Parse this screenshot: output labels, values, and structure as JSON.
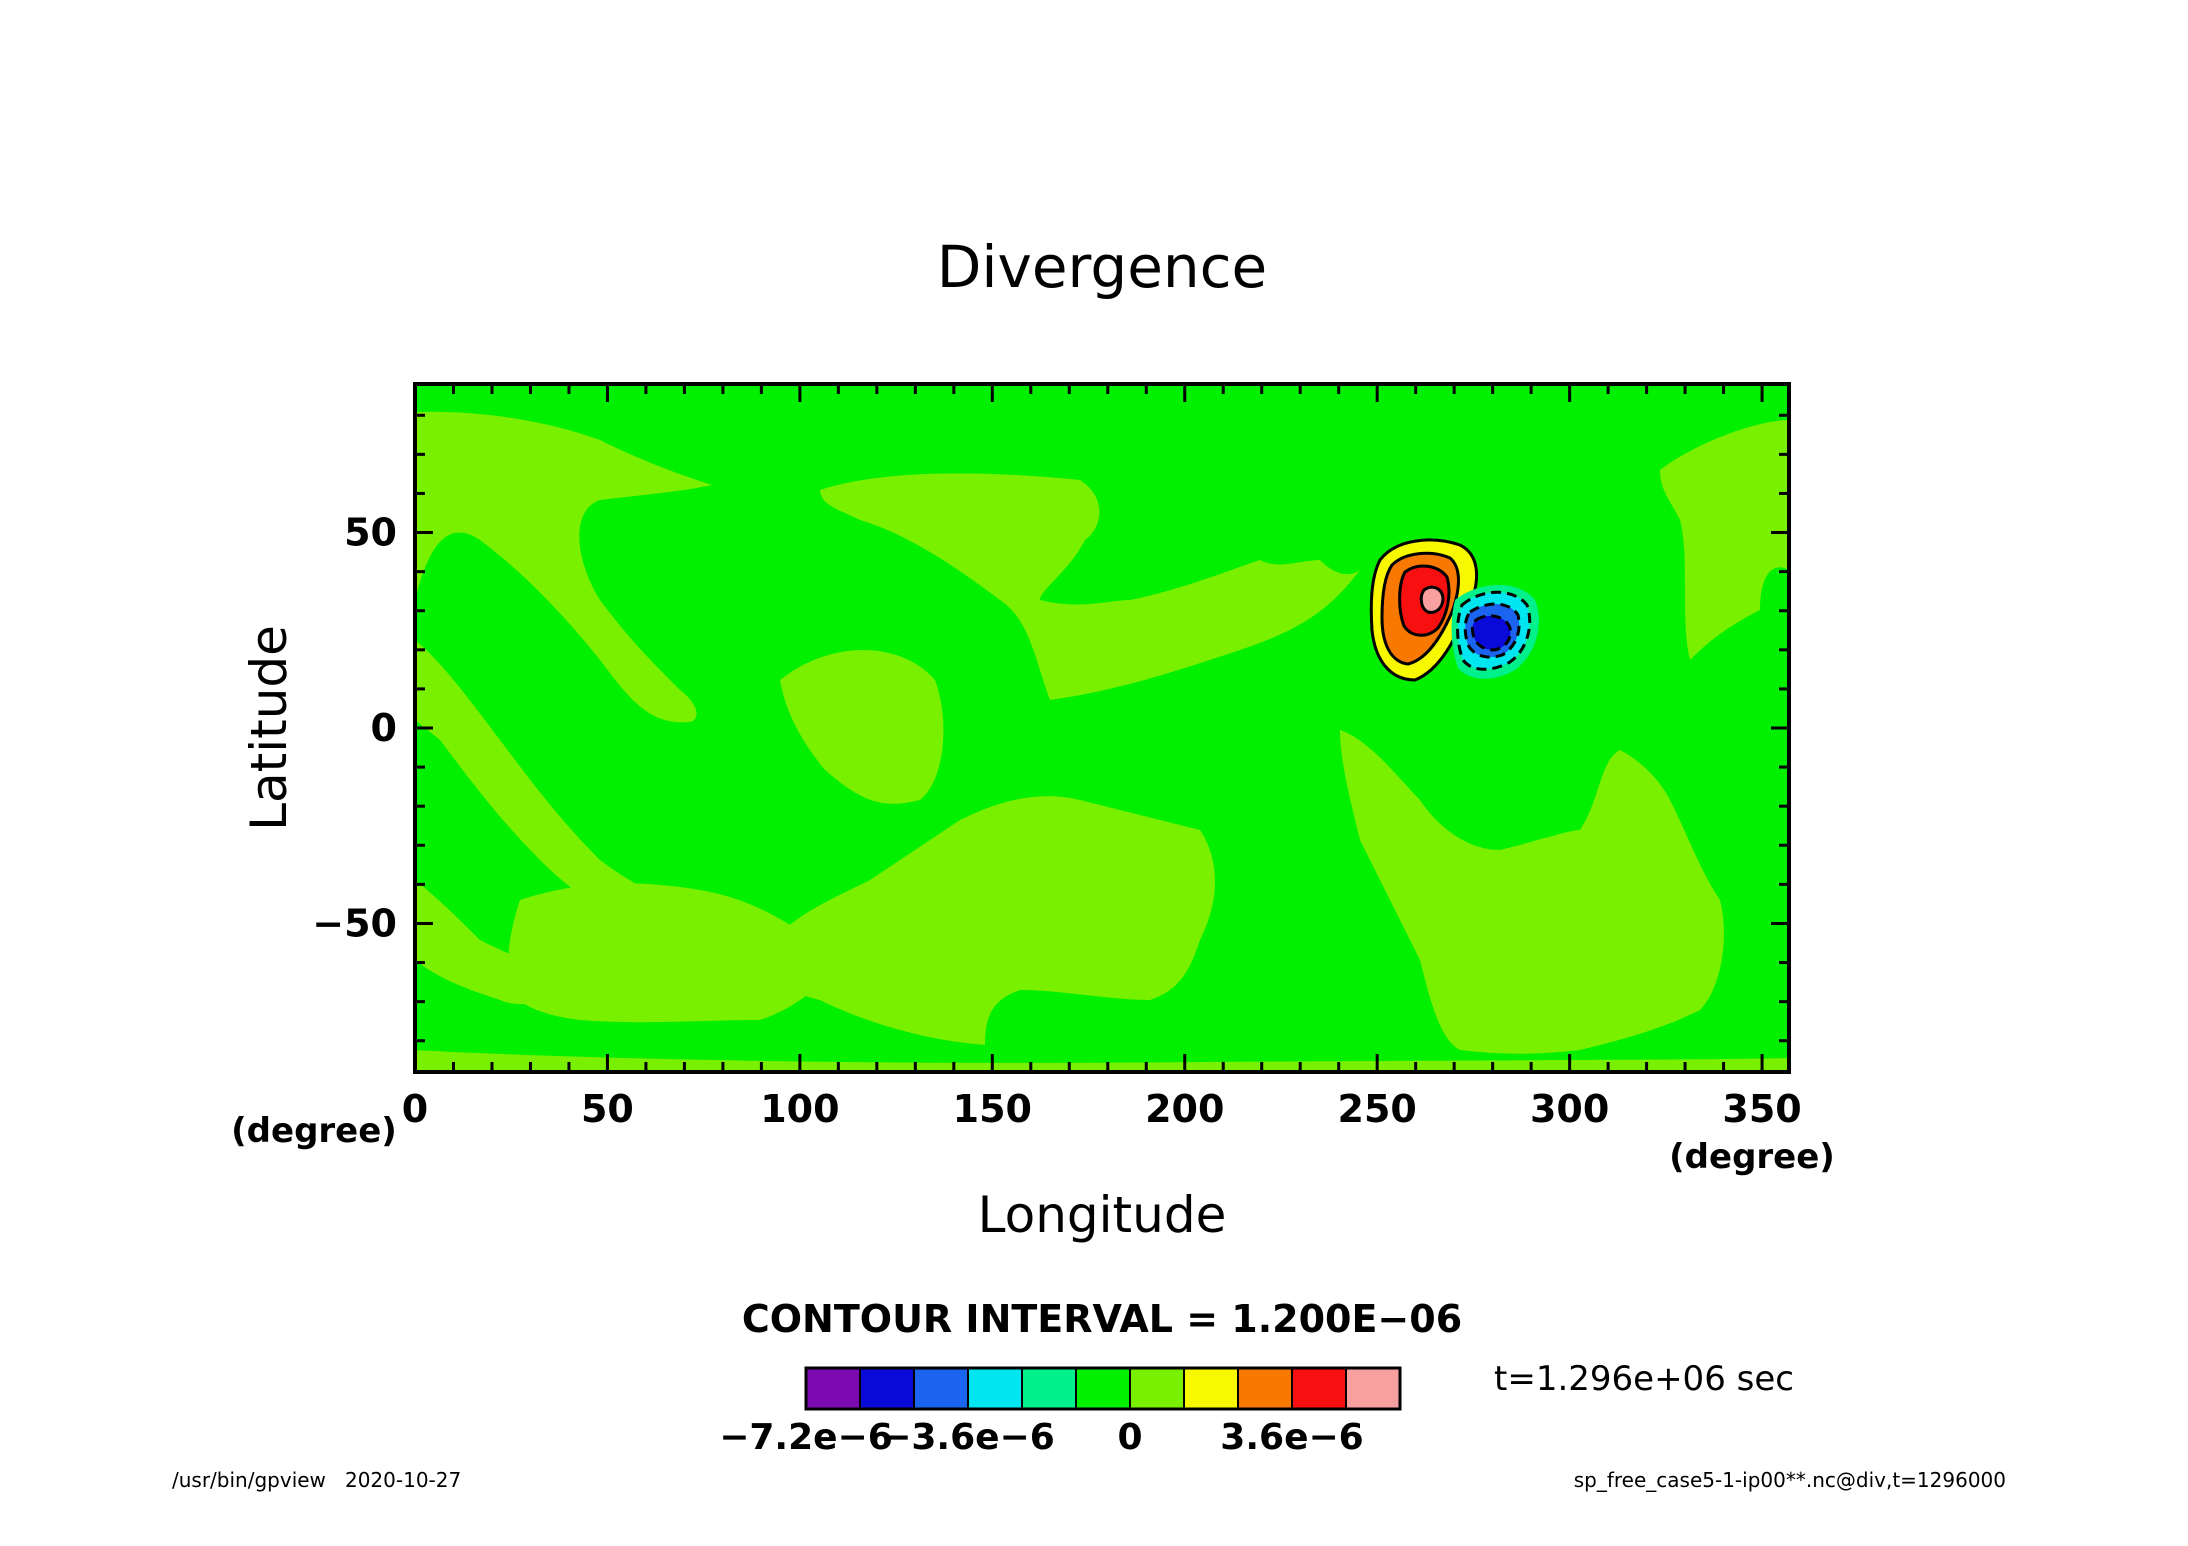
{
  "chart_data": {
    "type": "contour",
    "title": "Divergence",
    "xlabel": "Longitude",
    "ylabel": "Latitude",
    "xunit": "(degree)",
    "yunit": "(degree)",
    "xlim": [
      0,
      357
    ],
    "ylim": [
      -88,
      88
    ],
    "xticks": [
      0,
      50,
      100,
      150,
      200,
      250,
      300,
      350
    ],
    "yticks": [
      -50,
      0,
      50
    ],
    "xtick_labels": [
      "0",
      "50",
      "100",
      "150",
      "200",
      "250",
      "300",
      "350"
    ],
    "ytick_labels": [
      "−50",
      "0",
      "50"
    ],
    "contour_interval_text": "CONTOUR INTERVAL = 1.200E−06",
    "contour_interval": 1.2e-06,
    "time_label": "t=1.296e+06 sec",
    "colorbar": {
      "levels": [
        -7.2e-06,
        -6e-06,
        -4.8e-06,
        -3.6e-06,
        -2.4e-06,
        -1.2e-06,
        0,
        1.2e-06,
        2.4e-06,
        3.6e-06,
        4.8e-06,
        6e-06
      ],
      "colors": [
        "#7b0ab0",
        "#0a0ad8",
        "#1a64f0",
        "#00e6f0",
        "#00f08c",
        "#00f000",
        "#78f000",
        "#f8f800",
        "#f87800",
        "#f81010",
        "#f8a0a0"
      ],
      "tick_labels": [
        {
          "text": "−7.2e−6",
          "value": -7.2e-06
        },
        {
          "text": "−3.6e−6",
          "value": -3.6e-06
        },
        {
          "text": "0",
          "value": 0
        },
        {
          "text": "3.6e−6",
          "value": 3.6e-06
        }
      ]
    },
    "features": [
      {
        "name": "divergence-maximum",
        "sign": "positive",
        "lon": 265,
        "lat": 34,
        "peak_approx": 6e-06
      },
      {
        "name": "convergence-minimum",
        "sign": "negative",
        "lon": 283,
        "lat": 25,
        "peak_approx": -4.8e-06
      }
    ],
    "background_band_colors": {
      "negative_small": "#00f000",
      "positive_small": "#78f000"
    }
  },
  "footer": {
    "program": "/usr/bin/gpview   2020-10-27",
    "source": "sp_free_case5-1-ip00**.nc@div,t=1296000"
  }
}
